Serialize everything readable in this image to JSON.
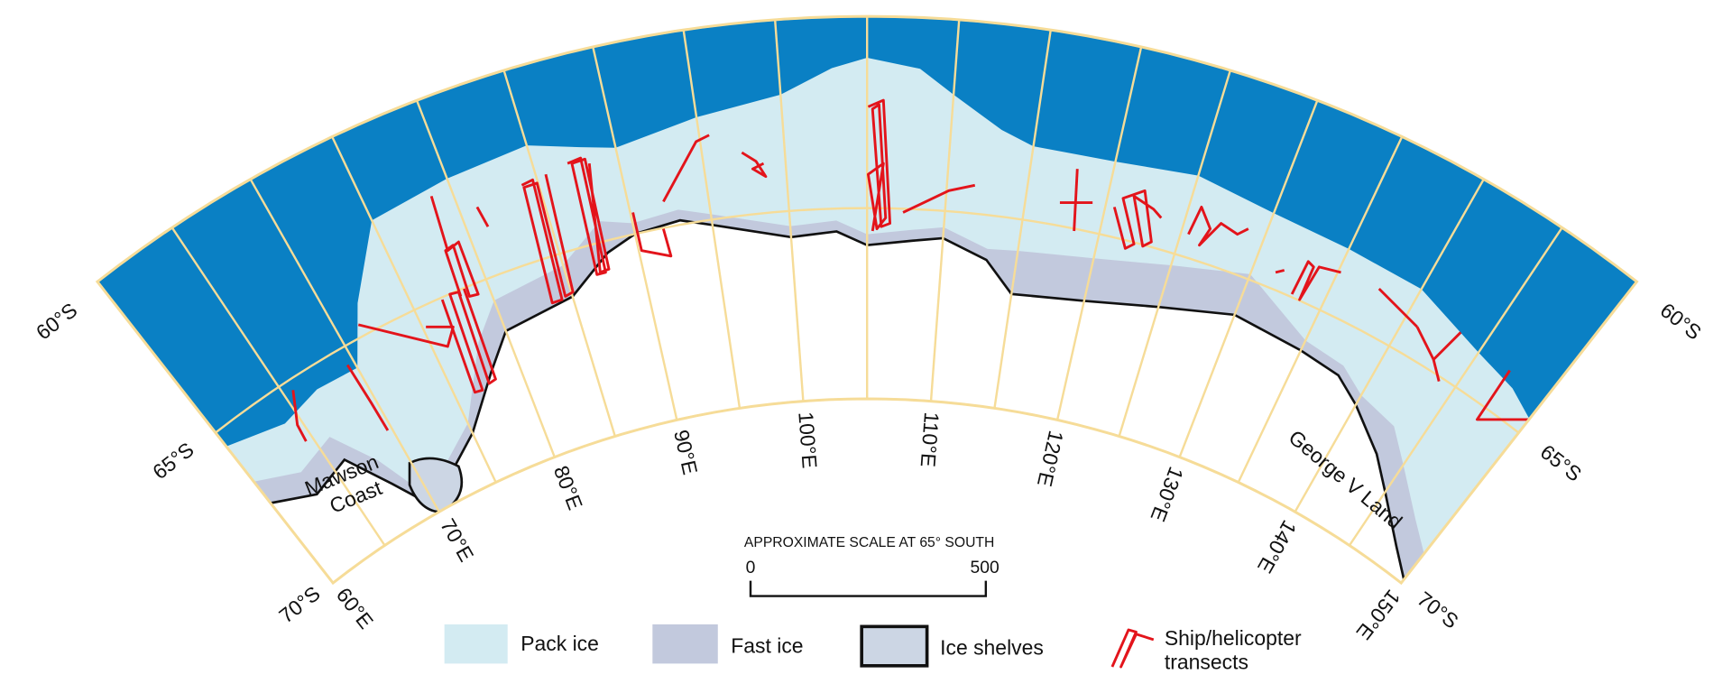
{
  "map": {
    "latitude_labels_left": [
      "60°S",
      "65°S",
      "70°S"
    ],
    "latitude_labels_right": [
      "60°S",
      "65°S",
      "70°S"
    ],
    "longitude_labels": [
      "60°E",
      "70°E",
      "80°E",
      "90°E",
      "100°E",
      "110°E",
      "120°E",
      "130°E",
      "140°E",
      "150°E"
    ],
    "place_names": {
      "mawson_coast": [
        "Mawson",
        "Coast"
      ],
      "george_v_land": "George V Land"
    },
    "scale": {
      "title": "APPROXIMATE SCALE AT 65° SOUTH",
      "start": 0,
      "end": 500
    },
    "legend": {
      "pack_ice": "Pack ice",
      "fast_ice": "Fast ice",
      "ice_shelves": "Ice shelves",
      "transects": [
        "Ship/helicopter",
        "transects"
      ]
    }
  }
}
